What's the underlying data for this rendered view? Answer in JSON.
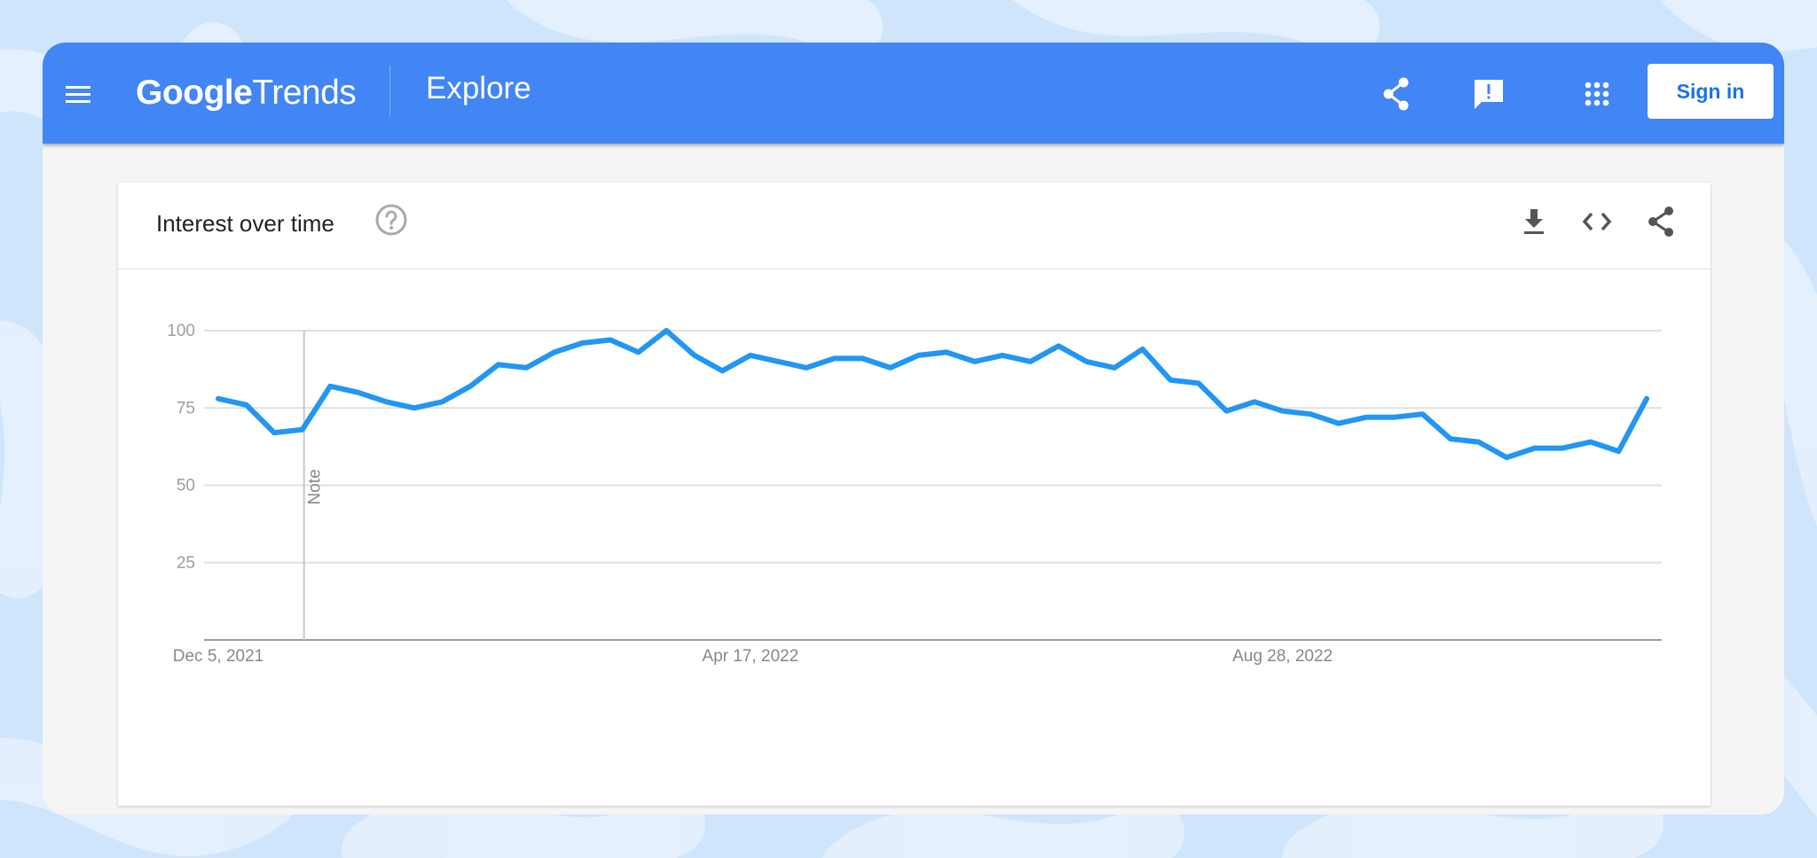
{
  "header": {
    "logo_google": "Google",
    "logo_trends": "Trends",
    "page_title": "Explore",
    "sign_in_label": "Sign in",
    "icons": [
      "menu-icon",
      "share-icon",
      "feedback-icon",
      "apps-icon"
    ]
  },
  "card": {
    "title": "Interest over time",
    "icons": [
      "help-icon",
      "download-icon",
      "embed-icon",
      "share-icon"
    ]
  },
  "colors": {
    "brand_bar": "#4285f4",
    "line": "#2196f3",
    "sign_in_text": "#1a73e8",
    "background": "#cfe5fb"
  },
  "chart_data": {
    "type": "line",
    "title": "",
    "xlabel": "",
    "ylabel": "",
    "ylim": [
      0,
      100
    ],
    "yticks": [
      25,
      50,
      75,
      100
    ],
    "x_tick_labels": [
      {
        "label": "Dec 5, 2021",
        "index": 0
      },
      {
        "label": "Apr 17, 2022",
        "index": 19
      },
      {
        "label": "Aug 28, 2022",
        "index": 38
      }
    ],
    "annotation": {
      "label": "Note",
      "index": 3
    },
    "grid": true,
    "series": [
      {
        "values": [
          78,
          76,
          67,
          68,
          82,
          80,
          77,
          75,
          77,
          82,
          89,
          88,
          93,
          96,
          97,
          93,
          100,
          92,
          87,
          92,
          90,
          88,
          91,
          91,
          88,
          92,
          93,
          90,
          92,
          90,
          95,
          90,
          88,
          94,
          84,
          83,
          74,
          77,
          74,
          73,
          70,
          72,
          72,
          73,
          65,
          64,
          59,
          62,
          62,
          64,
          61,
          78
        ]
      }
    ]
  }
}
